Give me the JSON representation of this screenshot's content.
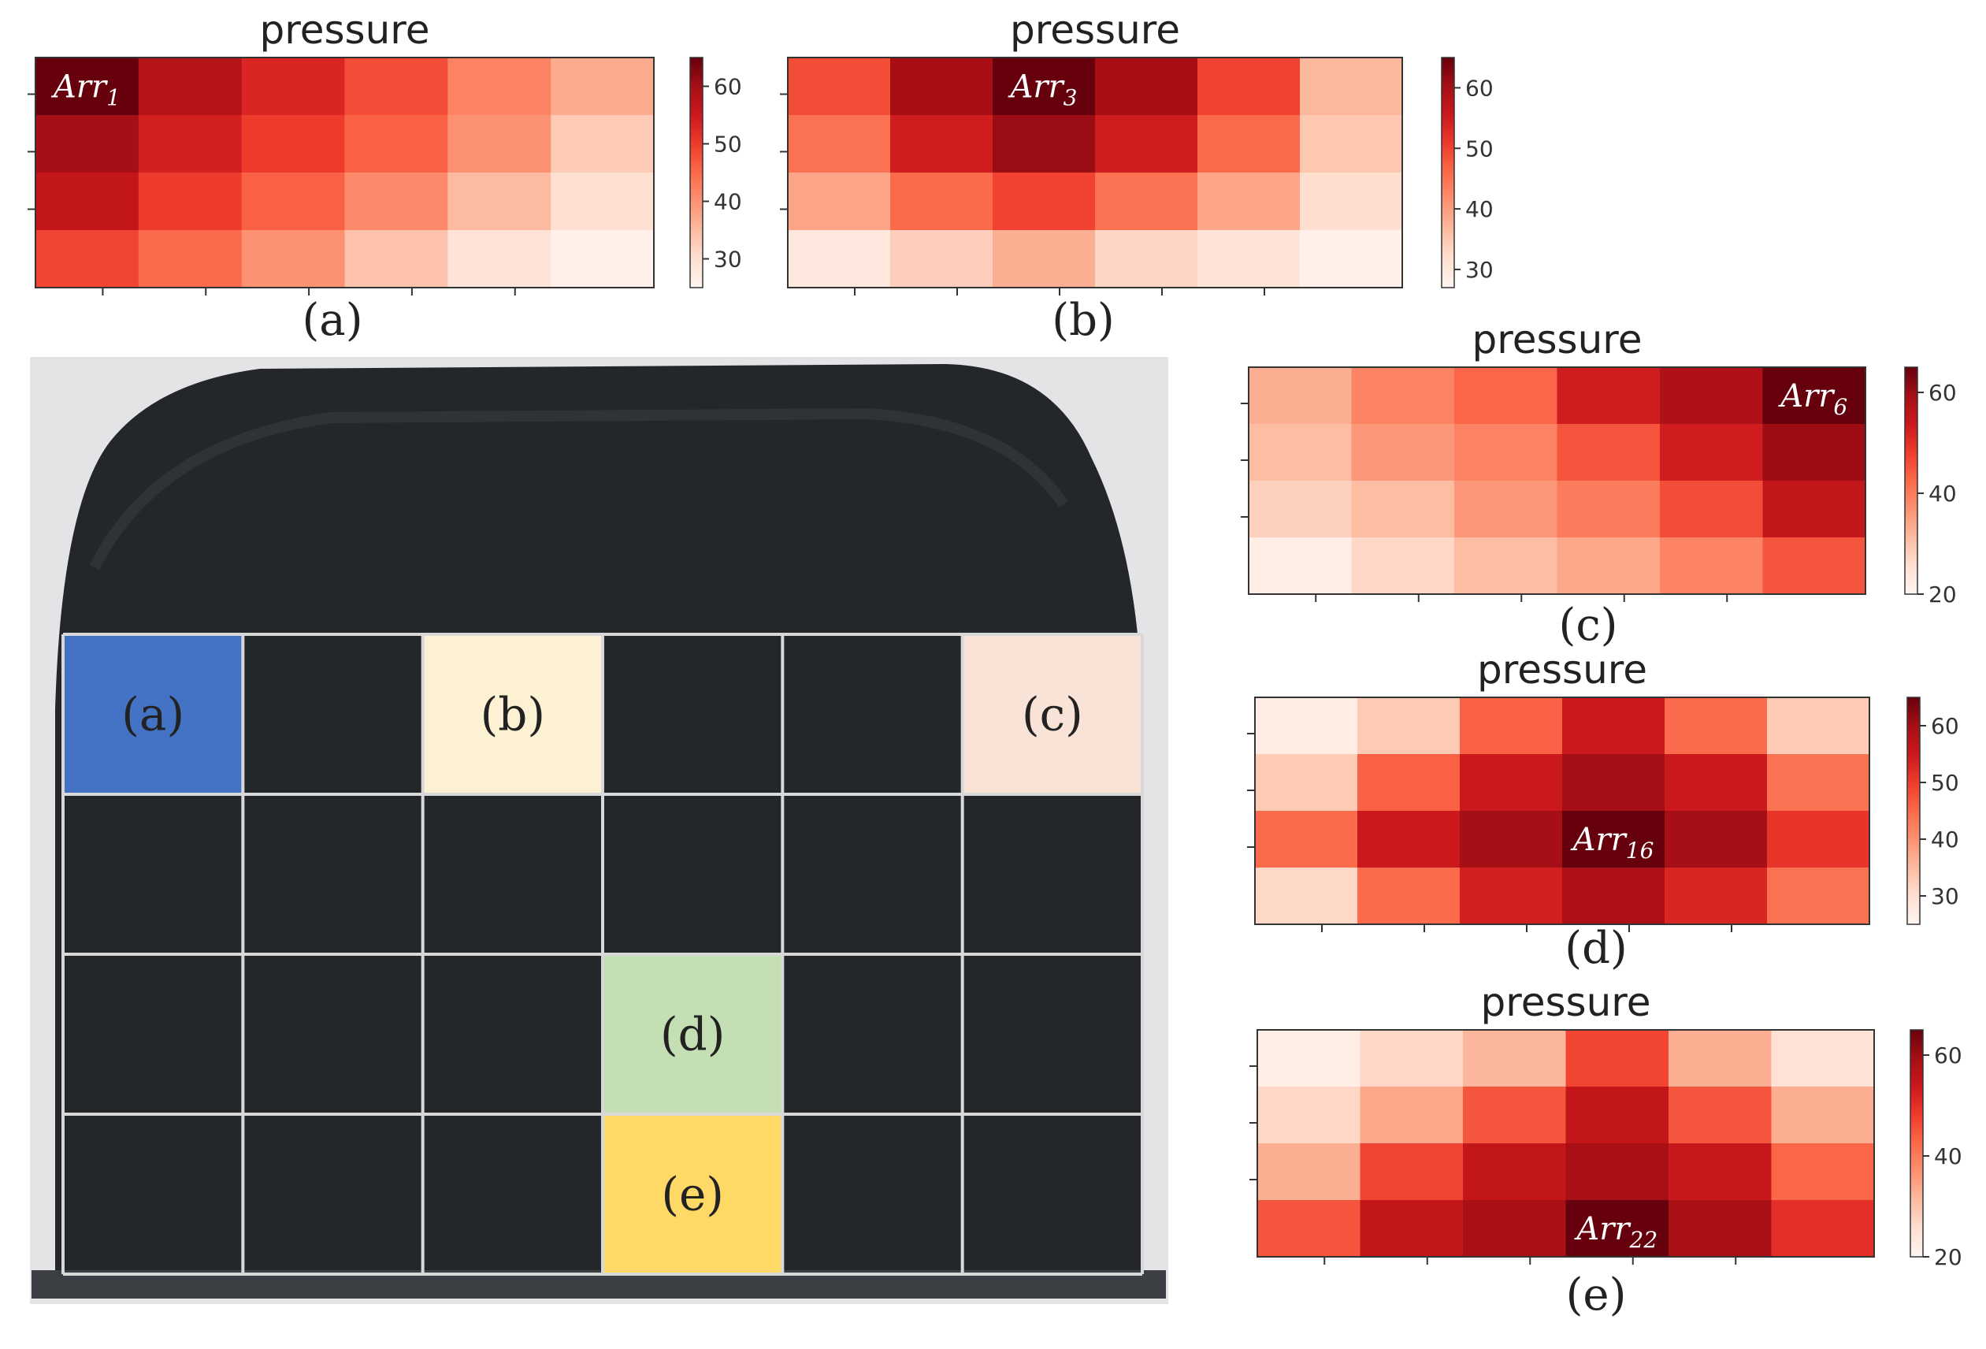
{
  "panels": {
    "a": {
      "caption": "(a)"
    },
    "b": {
      "caption": "(b)"
    },
    "c": {
      "caption": "(c)"
    },
    "d": {
      "caption": "(d)"
    },
    "e": {
      "caption": "(e)"
    }
  },
  "photo": {
    "cell_labels": [
      {
        "label": "(a)",
        "row": 0,
        "col": 0,
        "color": "#4472c4"
      },
      {
        "label": "(b)",
        "row": 0,
        "col": 2,
        "color": "#fdf1d3"
      },
      {
        "label": "(c)",
        "row": 0,
        "col": 5,
        "color": "#f8e3d6"
      },
      {
        "label": "(d)",
        "row": 2,
        "col": 3,
        "color": "#c5dfb5"
      },
      {
        "label": "(e)",
        "row": 3,
        "col": 3,
        "color": "#ffd966"
      }
    ],
    "grid_rows": 4,
    "grid_cols": 6,
    "surface_color": "#222528",
    "grid_line_color": "#d8d8d8"
  },
  "chart_data": [
    {
      "id": "a",
      "type": "heatmap",
      "title": "pressure",
      "rows": 4,
      "cols": 6,
      "values": [
        [
          65,
          58,
          53,
          48,
          42,
          37
        ],
        [
          60,
          54,
          50,
          46,
          40,
          33
        ],
        [
          56,
          50,
          46,
          41,
          35,
          30
        ],
        [
          49,
          45,
          40,
          34,
          29,
          26
        ]
      ],
      "vmin": 25,
      "vmax": 65,
      "colorbar_ticks": [
        30,
        40,
        50,
        60
      ],
      "annotation": {
        "base": "Arr",
        "sub": "1",
        "row": 0,
        "col": 0
      }
    },
    {
      "id": "b",
      "type": "heatmap",
      "title": "pressure",
      "rows": 4,
      "cols": 6,
      "values": [
        [
          49,
          60,
          65,
          60,
          50,
          37
        ],
        [
          45,
          55,
          61,
          55,
          46,
          35
        ],
        [
          39,
          46,
          50,
          45,
          39,
          32
        ],
        [
          30,
          34,
          38,
          33,
          31,
          28
        ]
      ],
      "vmin": 27,
      "vmax": 65,
      "colorbar_ticks": [
        30,
        40,
        50,
        60
      ],
      "annotation": {
        "base": "Arr",
        "sub": "3",
        "row": 0,
        "col": 2
      }
    },
    {
      "id": "c",
      "type": "heatmap",
      "title": "pressure",
      "rows": 4,
      "cols": 6,
      "values": [
        [
          33,
          39,
          43,
          53,
          58,
          65
        ],
        [
          31,
          36,
          39,
          45,
          53,
          60
        ],
        [
          28,
          31,
          36,
          40,
          46,
          55
        ],
        [
          22,
          27,
          31,
          34,
          39,
          45
        ]
      ],
      "vmin": 20,
      "vmax": 65,
      "colorbar_ticks": [
        20,
        40,
        60
      ],
      "annotation": {
        "base": "Arr",
        "sub": "6",
        "row": 0,
        "col": 5
      }
    },
    {
      "id": "d",
      "type": "heatmap",
      "title": "pressure",
      "rows": 4,
      "cols": 6,
      "values": [
        [
          27,
          33,
          46,
          55,
          45,
          33
        ],
        [
          33,
          46,
          55,
          60,
          55,
          44
        ],
        [
          45,
          55,
          60,
          65,
          60,
          51
        ],
        [
          31,
          45,
          54,
          59,
          53,
          44
        ]
      ],
      "vmin": 25,
      "vmax": 65,
      "colorbar_ticks": [
        30,
        40,
        50,
        60
      ],
      "annotation": {
        "base": "Arr",
        "sub": "16",
        "row": 2,
        "col": 3
      }
    },
    {
      "id": "e",
      "type": "heatmap",
      "title": "pressure",
      "rows": 4,
      "cols": 6,
      "values": [
        [
          22,
          27,
          32,
          47,
          33,
          25
        ],
        [
          27,
          34,
          45,
          55,
          45,
          33
        ],
        [
          33,
          47,
          55,
          59,
          54,
          43
        ],
        [
          45,
          55,
          59,
          65,
          59,
          50
        ]
      ],
      "vmin": 20,
      "vmax": 65,
      "colorbar_ticks": [
        20,
        40,
        60
      ],
      "annotation": {
        "base": "Arr",
        "sub": "22",
        "row": 3,
        "col": 3
      }
    }
  ]
}
